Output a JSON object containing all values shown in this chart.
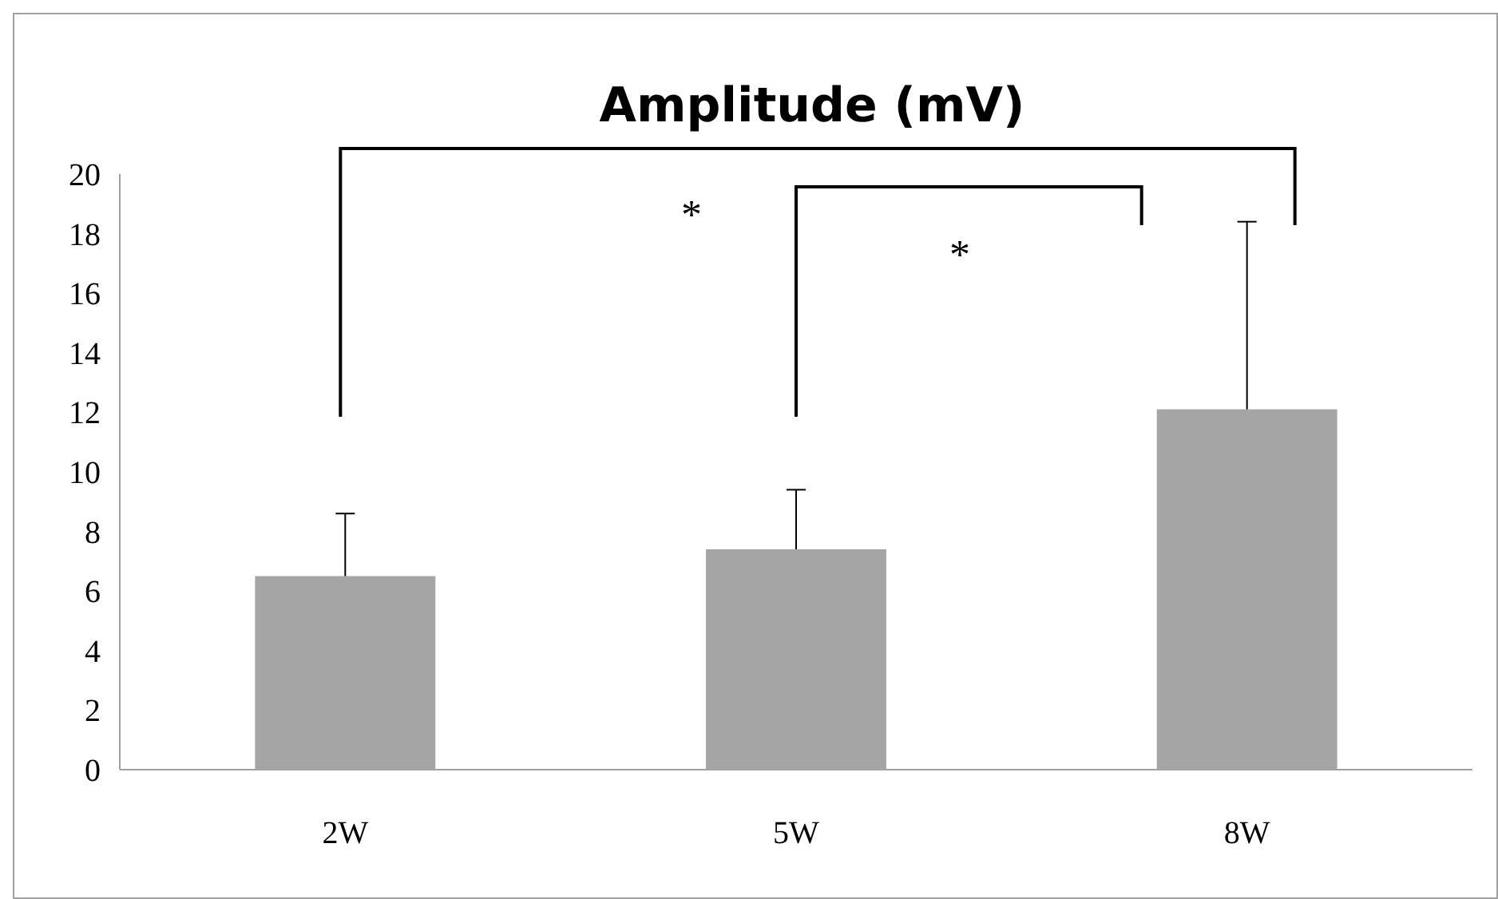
{
  "chart_data": {
    "type": "bar",
    "title": "Amplitude (mV)",
    "categories": [
      "2W",
      "5W",
      "8W"
    ],
    "values": [
      6.5,
      7.4,
      12.1
    ],
    "errors": [
      [
        6.5,
        8.6
      ],
      [
        7.4,
        9.4
      ],
      [
        12.1,
        18.4
      ]
    ],
    "color": "#a5a5a5",
    "ylim": [
      0,
      20
    ],
    "yticks": [
      0,
      2,
      4,
      6,
      8,
      10,
      12,
      14,
      16,
      18,
      20
    ],
    "grid": false,
    "annotations": [
      "*",
      "*"
    ]
  }
}
